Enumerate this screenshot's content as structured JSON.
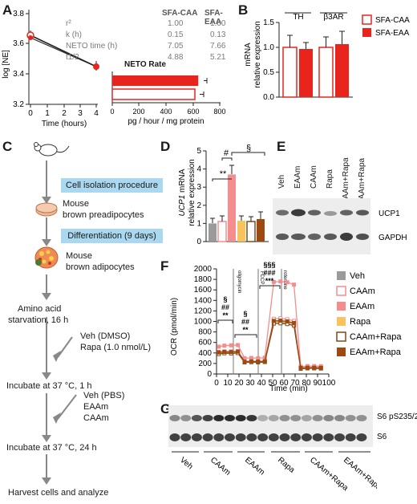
{
  "panels": {
    "A": "A",
    "B": "B",
    "C": "C",
    "D": "D",
    "E": "E",
    "F": "F",
    "G": "G"
  },
  "panelA": {
    "ylabel": "log [NE]",
    "xlabel": "Time (hours)",
    "yticks": [
      "3.8",
      "3.6",
      "3.4",
      "3.2"
    ],
    "xticks": [
      "0",
      "1",
      "2",
      "3",
      "4"
    ],
    "table_headers": [
      "SFA-CAA",
      "SFA-EAA"
    ],
    "table_rows": [
      {
        "label": "r²",
        "caa": "1.00",
        "eaa": "1.00"
      },
      {
        "label": "k (h)",
        "caa": "0.15",
        "eaa": "0.13"
      },
      {
        "label": "NETO time (h)",
        "caa": "7.05",
        "eaa": "7.66"
      },
      {
        "label": "t1/2",
        "caa": "4.88",
        "eaa": "5.21"
      }
    ],
    "neto_title": "NETO Rate",
    "neto_xticks": [
      "0",
      "200",
      "400",
      "600",
      "800"
    ],
    "neto_xlabel": "pg / hour / mg protein",
    "neto_values": {
      "eaa": 640,
      "caa": 615
    }
  },
  "panelB": {
    "ylabel1": "mRNA",
    "ylabel2": "relative expression",
    "yticks": [
      "1.5",
      "1.0",
      "0.5",
      "0.0"
    ],
    "groups": [
      "TH",
      "β3AR"
    ],
    "legend": [
      "SFA-CAA",
      "SFA-EAA"
    ],
    "values": {
      "TH": [
        1.0,
        0.97
      ],
      "B3AR": [
        1.0,
        1.07
      ]
    }
  },
  "panelC": {
    "steps": [
      "Cell isolation procedure",
      "Mouse",
      "brown preadipocytes",
      "Differentiation (9 days)",
      "Mouse",
      "brown adipocytes",
      "Amino acid",
      "starvation, 16 h",
      "Veh (DMSO)",
      "Rapa (1.0 nmol/L)",
      "Incubate at 37 °C, 1 h",
      "Veh (PBS)",
      "EAAm",
      "CAAm",
      "Incubate at 37 °C, 24 h",
      "Harvest cells and analyze"
    ]
  },
  "panelD": {
    "ylabel_gene": "UCP1",
    "ylabel_rest": " mRNA",
    "ylabel2": "relative expression",
    "yticks": [
      "5",
      "4",
      "3",
      "2",
      "1",
      "0"
    ],
    "sig": [
      "#",
      "**",
      "§"
    ],
    "values": [
      1.0,
      1.1,
      3.7,
      1.15,
      1.1,
      1.25
    ]
  },
  "panelE": {
    "lanes": [
      "Veh",
      "EAAm",
      "CAAm",
      "Rapa",
      "CAAm+Rapa",
      "EAAm+Rapa"
    ],
    "bands": [
      "UCP1",
      "GAPDH"
    ]
  },
  "panelF": {
    "ylabel": "OCR (pmol/min)",
    "xlabel": "Time (min)",
    "yticks": [
      "2000",
      "1800",
      "1600",
      "1400",
      "1200",
      "1000",
      "800",
      "600",
      "400",
      "200",
      "0"
    ],
    "xticks": [
      "0",
      "10",
      "20",
      "30",
      "40",
      "50",
      "60",
      "70",
      "80",
      "90",
      "100"
    ],
    "markers": [
      "oligomycin",
      "FCCP",
      "rotenone"
    ],
    "sig1": [
      "§",
      "##",
      "**"
    ],
    "sig2": [
      "§",
      "##",
      "**"
    ],
    "sig3": [
      "§§§",
      "###",
      "***"
    ],
    "legend": [
      "Veh",
      "CAAm",
      "EAAm",
      "Rapa",
      "CAAm+Rapa",
      "EAAm+Rapa"
    ]
  },
  "panelG": {
    "lanes": [
      "Veh",
      "CAAm",
      "EAAm",
      "Rapa",
      "CAAm+Rapa",
      "EAAm+Rapa"
    ],
    "bands": [
      "S6 pS235/236",
      "S6"
    ]
  },
  "colors": {
    "eaa_red": "#e8241d",
    "caa_pink": "#f48d8d",
    "veh_grey": "#9a9a9a",
    "rapa_yellow": "#f8c35c",
    "caa_rapa_brown": "#7a4a1c",
    "eaa_rapa_brown": "#9c4a12",
    "flow_blue": "#a9d8f0"
  }
}
